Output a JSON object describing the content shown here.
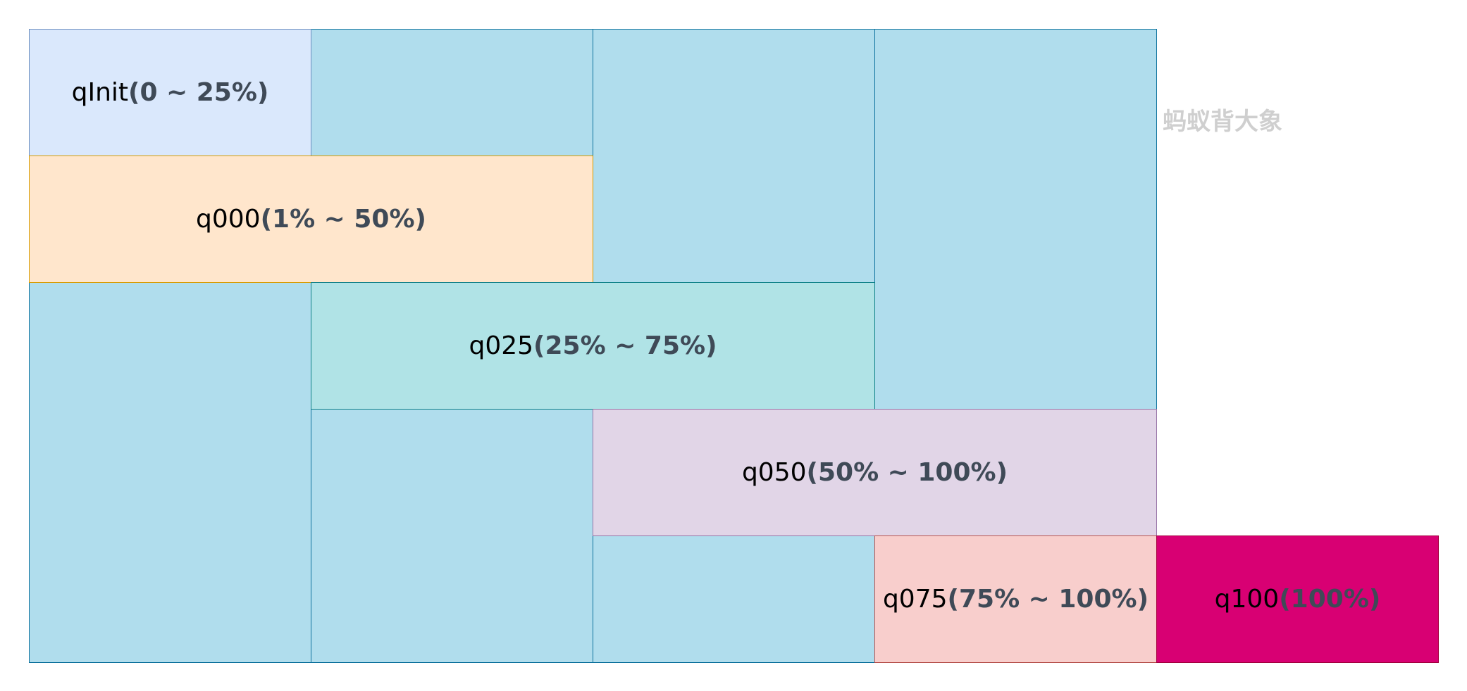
{
  "watermark": "蚂蚁背大象",
  "boxes": {
    "qinit": {
      "name": "qInit",
      "range": "(0 ~ 25%)",
      "fill": "#dae8fc",
      "stroke": "#6c8ebf"
    },
    "q000": {
      "name": "q000",
      "range": "(1% ~ 50%)",
      "fill": "#ffe6cc",
      "stroke": "#d79b00"
    },
    "q025": {
      "name": "q025",
      "range": "(25% ~ 75%)",
      "fill": "#b0e3e6",
      "stroke": "#0e8088"
    },
    "q050": {
      "name": "q050",
      "range": "(50% ~ 100%)",
      "fill": "#e1d5e7",
      "stroke": "#9673a6"
    },
    "q075": {
      "name": "q075",
      "range": "(75% ~ 100%)",
      "fill": "#f8cecc",
      "stroke": "#b85450"
    },
    "q100": {
      "name": "q100",
      "range": "(100%)",
      "fill": "#d80073",
      "stroke": "#a50040"
    }
  },
  "colors": {
    "background_cell": "#b0dded",
    "background_stroke": "#10739e"
  }
}
